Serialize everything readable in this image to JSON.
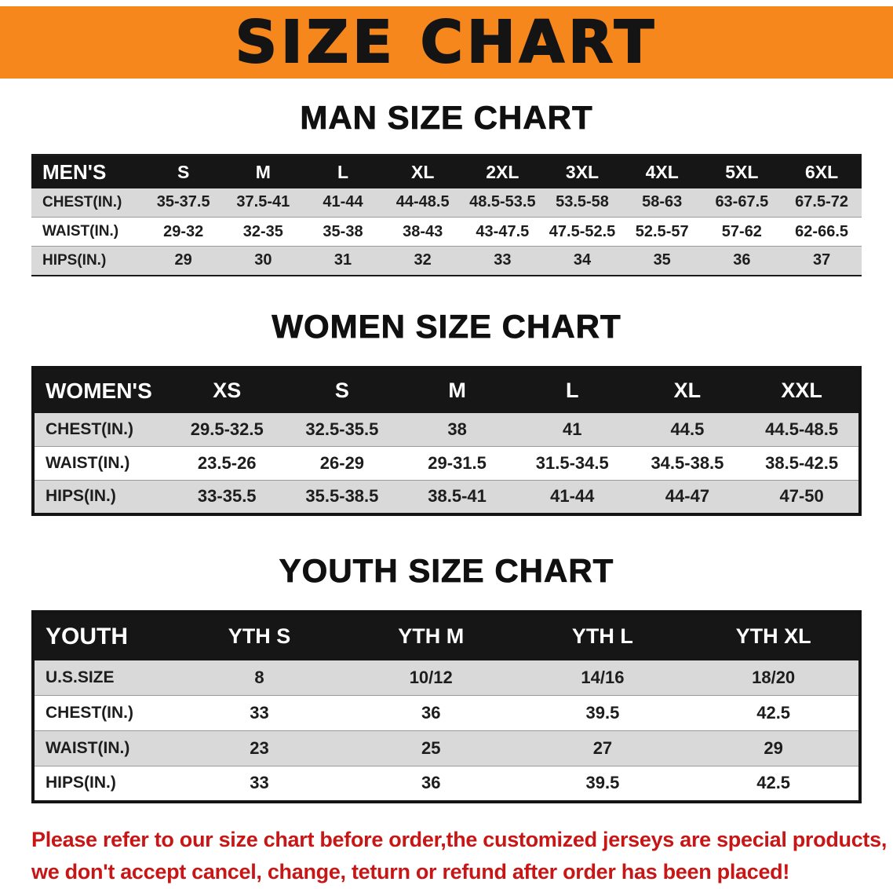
{
  "banner": {
    "title": "SIZE CHART"
  },
  "colors": {
    "banner_bg": "#f6871d",
    "table_header_bg": "#161616",
    "row_shade": "#d9d9d9",
    "disclaimer_text": "#c81616"
  },
  "sections": [
    {
      "heading": "MAN SIZE CHART",
      "table": {
        "header": [
          "MEN'S",
          "S",
          "M",
          "L",
          "XL",
          "2XL",
          "3XL",
          "4XL",
          "5XL",
          "6XL"
        ],
        "rows": [
          {
            "label": "CHEST(IN.)",
            "values": [
              "35-37.5",
              "37.5-41",
              "41-44",
              "44-48.5",
              "48.5-53.5",
              "53.5-58",
              "58-63",
              "63-67.5",
              "67.5-72"
            ]
          },
          {
            "label": "WAIST(IN.)",
            "values": [
              "29-32",
              "32-35",
              "35-38",
              "38-43",
              "43-47.5",
              "47.5-52.5",
              "52.5-57",
              "57-62",
              "62-66.5"
            ]
          },
          {
            "label": "HIPS(IN.)",
            "values": [
              "29",
              "30",
              "31",
              "32",
              "33",
              "34",
              "35",
              "36",
              "37"
            ]
          }
        ]
      }
    },
    {
      "heading": "WOMEN SIZE CHART",
      "table": {
        "header": [
          "WOMEN'S",
          "XS",
          "S",
          "M",
          "L",
          "XL",
          "XXL"
        ],
        "rows": [
          {
            "label": "CHEST(IN.)",
            "values": [
              "29.5-32.5",
              "32.5-35.5",
              "38",
              "41",
              "44.5",
              "44.5-48.5"
            ]
          },
          {
            "label": "WAIST(IN.)",
            "values": [
              "23.5-26",
              "26-29",
              "29-31.5",
              "31.5-34.5",
              "34.5-38.5",
              "38.5-42.5"
            ]
          },
          {
            "label": "HIPS(IN.)",
            "values": [
              "33-35.5",
              "35.5-38.5",
              "38.5-41",
              "41-44",
              "44-47",
              "47-50"
            ]
          }
        ]
      }
    },
    {
      "heading": "YOUTH SIZE CHART",
      "table": {
        "header": [
          "YOUTH",
          "YTH S",
          "YTH M",
          "YTH L",
          "YTH XL"
        ],
        "rows": [
          {
            "label": "U.S.SIZE",
            "values": [
              "8",
              "10/12",
              "14/16",
              "18/20"
            ]
          },
          {
            "label": "CHEST(IN.)",
            "values": [
              "33",
              "36",
              "39.5",
              "42.5"
            ]
          },
          {
            "label": "WAIST(IN.)",
            "values": [
              "23",
              "25",
              "27",
              "29"
            ]
          },
          {
            "label": "HIPS(IN.)",
            "values": [
              "33",
              "36",
              "39.5",
              "42.5"
            ]
          }
        ]
      }
    }
  ],
  "disclaimer": {
    "lines": [
      "Please refer to our size chart before order,the customized jerseys are special products,",
      "we don't accept cancel, change, teturn or refund after order has been placed!"
    ]
  }
}
